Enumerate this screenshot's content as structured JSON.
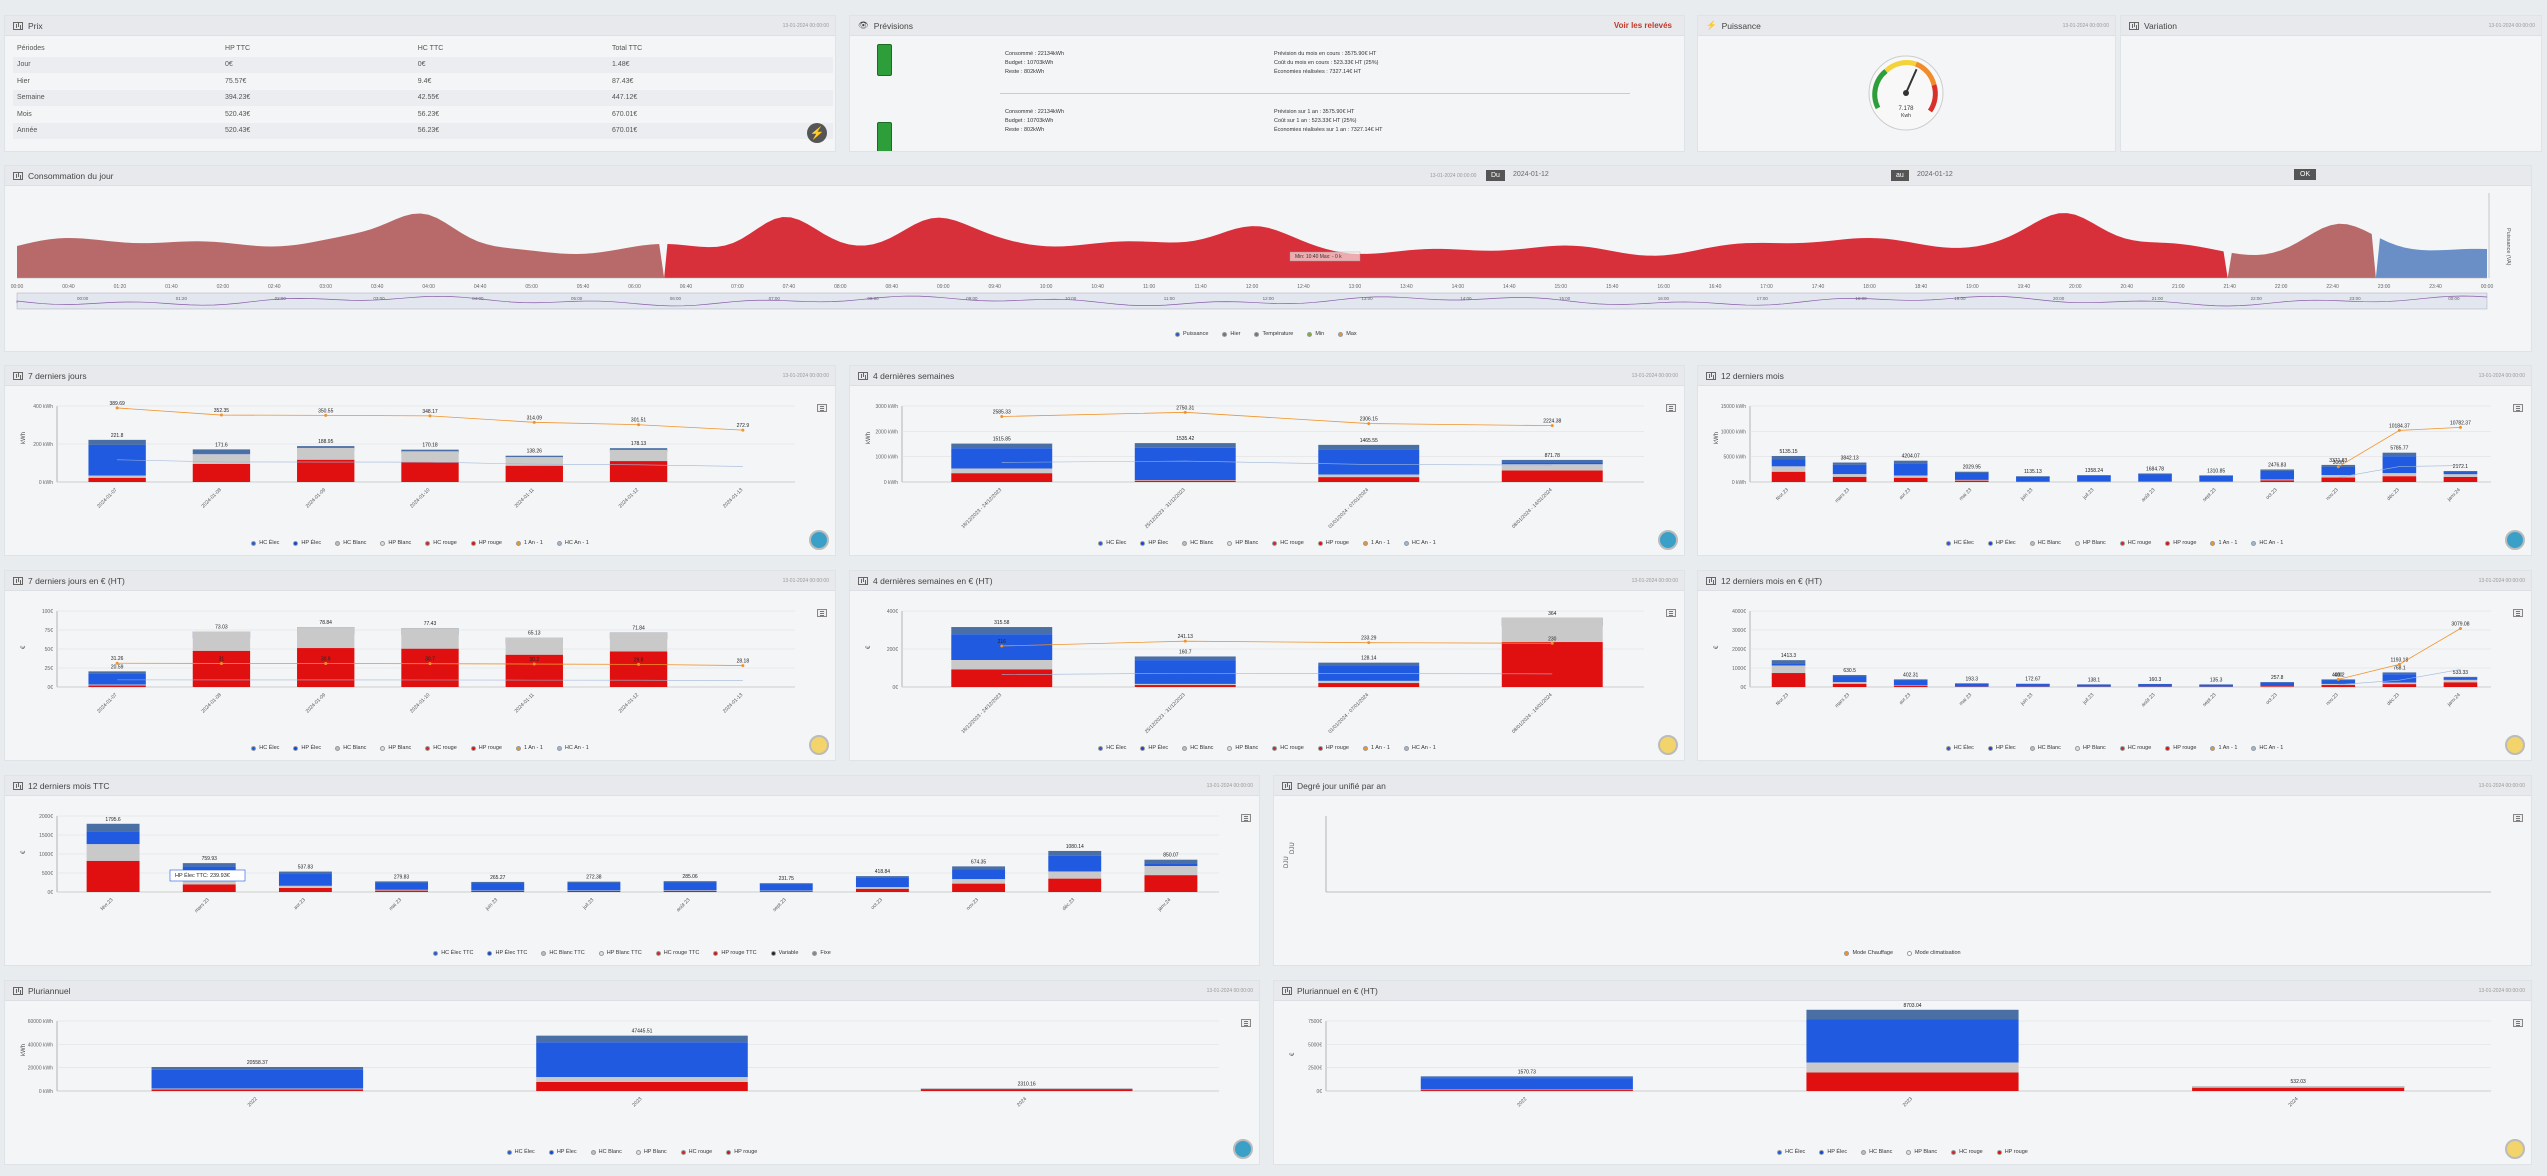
{
  "prix": {
    "title": "Prix",
    "date": "13-01-2024 00:00:00",
    "headers": [
      "Périodes",
      "HP TTC",
      "HC TTC",
      "Total TTC"
    ],
    "rows": [
      [
        "Jour",
        "0€",
        "0€",
        "1.48€"
      ],
      [
        "Hier",
        "75.57€",
        "9.4€",
        "87.43€"
      ],
      [
        "Semaine",
        "394.23€",
        "42.55€",
        "447.12€"
      ],
      [
        "Mois",
        "520.43€",
        "56.23€",
        "670.01€"
      ],
      [
        "Année",
        "520.43€",
        "56.23€",
        "670.01€"
      ]
    ]
  },
  "previsions": {
    "title": "Prévisions",
    "link": "Voir les relevés",
    "rows": [
      {
        "left": [
          "Consommé : 22134kWh",
          "Budget : 10703kWh",
          "Reste : 802kWh"
        ],
        "right": [
          "Prévision du mois en cours : 3575.90€ HT",
          "Coût du mois en cours : 523.33€ HT (25%)",
          "Économies réalisées : 7327.14€ HT"
        ]
      },
      {
        "left": [
          "Consommé : 22134kWh",
          "Budget : 10703kWh",
          "Reste : 802kWh"
        ],
        "right": [
          "Prévision sur 1 an : 3575.90€ HT",
          "Coût sur 1 an : 523.33€ HT (25%)",
          "Économies réalisées sur 1 an : 7327.14€ HT"
        ]
      }
    ]
  },
  "puissance": {
    "title": "Puissance",
    "date": "13-01-2024 00:00:00",
    "value": "7.178",
    "unit": "Kwh",
    "gauge_fraction": 0.6
  },
  "variation": {
    "title": "Variation",
    "date": "13-01-2024 00:00:00"
  },
  "conso_jour": {
    "title": "Consommation du jour",
    "date": "13-01-2024 00:00:00",
    "du_label": "Du",
    "du_value": "2024-01-12",
    "au_label": "au",
    "au_value": "2024-01-12",
    "ok": "OK",
    "tooltip": "Min: 10:40 Max: - 0 k",
    "yaxis": "Puissance (VA)",
    "ticks": [
      "00:00",
      "00:40",
      "01:20",
      "01:40",
      "02:00",
      "02:40",
      "03:00",
      "03:40",
      "04:00",
      "04:40",
      "05:00",
      "05:40",
      "06:00",
      "06:40",
      "07:00",
      "07:40",
      "08:00",
      "08:40",
      "09:00",
      "09:40",
      "10:00",
      "10:40",
      "11:00",
      "11:40",
      "12:00",
      "12:40",
      "13:00",
      "13:40",
      "14:00",
      "14:40",
      "15:00",
      "15:40",
      "16:00",
      "16:40",
      "17:00",
      "17:40",
      "18:00",
      "18:40",
      "19:00",
      "19:40",
      "20:00",
      "20:40",
      "21:00",
      "21:40",
      "22:00",
      "22:40",
      "23:00",
      "23:40",
      "00:00"
    ],
    "legend": [
      {
        "name": "Puissance",
        "color": "#2b59c3"
      },
      {
        "name": "Hier",
        "color": "#777"
      },
      {
        "name": "Température",
        "color": "#777"
      },
      {
        "name": "Min",
        "color": "#7fb036"
      },
      {
        "name": "Max",
        "color": "#f0932b"
      }
    ]
  },
  "legend_elec": [
    {
      "name": "HC Élec",
      "color": "#1f5ae0"
    },
    {
      "name": "HP Élec",
      "color": "#0c47d8"
    },
    {
      "name": "HC Blanc",
      "color": "#bdbdbd"
    },
    {
      "name": "HP Blanc",
      "color": "#e0e0e0"
    },
    {
      "name": "HC rouge",
      "color": "#c92a2a"
    },
    {
      "name": "HP rouge",
      "color": "#e01010"
    },
    {
      "name": "1 An - 1",
      "color": "#f0932b"
    },
    {
      "name": "HC An - 1",
      "color": "#9fb7d9"
    }
  ],
  "legend_ttc": [
    {
      "name": "HC Élec TTC",
      "color": "#1f5ae0"
    },
    {
      "name": "HP Élec TTC",
      "color": "#0c47d8"
    },
    {
      "name": "HC Blanc TTC",
      "color": "#bdbdbd"
    },
    {
      "name": "HP Blanc TTC",
      "color": "#e0e0e0"
    },
    {
      "name": "HC rouge TTC",
      "color": "#c92a2a"
    },
    {
      "name": "HP rouge TTC",
      "color": "#e01010"
    },
    {
      "name": "Variable",
      "color": "#222"
    },
    {
      "name": "Fixe",
      "color": "#888"
    }
  ],
  "legend_degre": [
    {
      "name": "Mode Chauffage",
      "color": "#f0932b"
    },
    {
      "name": "Mode climatisation",
      "color": "#ffffff"
    }
  ],
  "legend_pluri": [
    {
      "name": "HC Élec",
      "color": "#1f5ae0"
    },
    {
      "name": "HP Élec",
      "color": "#0c47d8"
    },
    {
      "name": "HC Blanc",
      "color": "#bdbdbd"
    },
    {
      "name": "HP Blanc",
      "color": "#e0e0e0"
    },
    {
      "name": "HC rouge",
      "color": "#c92a2a"
    },
    {
      "name": "HP rouge",
      "color": "#e01010"
    }
  ],
  "panels": {
    "p7j": {
      "title": "7 derniers jours",
      "date": "13-01-2024 00:00:00"
    },
    "p4s": {
      "title": "4 dernières semaines",
      "date": "13-01-2024 00:00:00"
    },
    "p12m": {
      "title": "12 derniers mois",
      "date": "13-01-2024 00:00:00"
    },
    "p7je": {
      "title": "7 derniers jours en € (HT)",
      "date": "13-01-2024 00:00:00"
    },
    "p4se": {
      "title": "4 dernières semaines en € (HT)",
      "date": "13-01-2024 00:00:00"
    },
    "p12me": {
      "title": "12 derniers mois en € (HT)",
      "date": "13-01-2024 00:00:00"
    },
    "p12ttc": {
      "title": "12 derniers mois TTC",
      "date": "13-01-2024 00:00:00",
      "tooltip": "HP Élec TTC: 239.93€"
    },
    "pdeg": {
      "title": "Degré jour unifié par an",
      "date": "13-01-2024 00:00:00",
      "yaxis": "DJU"
    },
    "ppl": {
      "title": "Pluriannuel",
      "date": "13-01-2024 00:00:00"
    },
    "pple": {
      "title": "Pluriannuel en € (HT)",
      "date": "13-01-2024 00:00:00"
    }
  },
  "chart_data": [
    {
      "id": "c7j",
      "type": "bar",
      "ylabel": "kWh",
      "yticks": [
        "0 kWh",
        "200 kWh",
        "400 kWh"
      ],
      "ymax": 400,
      "categories": [
        "2024-01-07",
        "2024-01-08",
        "2024-01-09",
        "2024-01-10",
        "2024-01-11",
        "2024-01-12",
        "2024-01-13"
      ],
      "totals": [
        221.8,
        171.6,
        188.95,
        170.18,
        138.26,
        178.13,
        0
      ],
      "blue": [
        0.85,
        0.15,
        0.05,
        0.05,
        0.05,
        0.05,
        0
      ],
      "line": [
        389.69,
        352.35,
        350.55,
        348.17,
        314.09,
        301.51,
        272.9
      ]
    },
    {
      "id": "c4s",
      "type": "bar",
      "ylabel": "kWh",
      "yticks": [
        "0 kWh",
        "1000 kWh",
        "2000 kWh",
        "3000 kWh"
      ],
      "ymax": 3000,
      "categories": [
        "18/12/2023 - 24/12/2023",
        "25/12/2023 - 31/12/2023",
        "01/01/2024 - 07/01/2024",
        "08/01/2024 - 14/01/2024"
      ],
      "totals": [
        1515.85,
        1535.42,
        1465.55,
        871.78
      ],
      "blue": [
        0.65,
        0.95,
        0.8,
        0.2
      ],
      "line": [
        2585.33,
        2750.31,
        2306.15,
        2224.38
      ]
    },
    {
      "id": "c12m",
      "type": "bar",
      "ylabel": "kWh",
      "yticks": [
        "0 kWh",
        "5000 kWh",
        "10000 kWh",
        "15000 kWh"
      ],
      "ymax": 15000,
      "categories": [
        "févr.23",
        "mars 23",
        "avr.23",
        "mai 23",
        "juin 23",
        "juil.23",
        "août 23",
        "sept.23",
        "oct.23",
        "nov.23",
        "déc.23",
        "janv.24"
      ],
      "totals": [
        5135.15,
        3842.13,
        4204.07,
        2029.95,
        1135.13,
        1358.24,
        1684.78,
        1310.85,
        2476.83,
        3371.83,
        5785.77,
        2172.1
      ],
      "blue": [
        0.4,
        0.6,
        0.7,
        0.8,
        0.9,
        0.9,
        0.9,
        0.9,
        0.8,
        0.6,
        0.7,
        0.3
      ],
      "line": [
        null,
        null,
        null,
        null,
        null,
        null,
        null,
        null,
        null,
        3000,
        10184.37,
        10782.37
      ]
    },
    {
      "id": "c7je",
      "type": "bar",
      "ylabel": "€",
      "yticks": [
        "0€",
        "25€",
        "50€",
        "75€",
        "100€"
      ],
      "ymax": 100,
      "categories": [
        "2024-01-07",
        "2024-01-08",
        "2024-01-09",
        "2024-01-10",
        "2024-01-11",
        "2024-01-12",
        "2024-01-13"
      ],
      "totals": [
        20.59,
        73.03,
        78.84,
        77.43,
        65.13,
        71.84,
        0
      ],
      "blue": [
        0.85,
        0,
        0,
        0,
        0,
        0,
        0
      ],
      "line": [
        31.26,
        31.0,
        30.9,
        30.7,
        30.2,
        29.8,
        28.18
      ]
    },
    {
      "id": "c4se",
      "type": "bar",
      "ylabel": "€",
      "yticks": [
        "0€",
        "200€",
        "400€"
      ],
      "ymax": 400,
      "categories": [
        "18/12/2023 - 24/12/2023",
        "25/12/2023 - 31/12/2023",
        "01/01/2024 - 07/01/2024",
        "08/01/2024 - 14/01/2024"
      ],
      "totals": [
        315.58,
        160.7,
        128.14,
        364.0
      ],
      "blue": [
        0.55,
        0.9,
        0.75,
        0
      ],
      "line": [
        216.0,
        241.13,
        233.29,
        230
      ]
    },
    {
      "id": "c12me",
      "type": "bar",
      "ylabel": "€",
      "yticks": [
        "0€",
        "1000€",
        "2000€",
        "3000€",
        "4000€"
      ],
      "ymax": 4000,
      "categories": [
        "févr.23",
        "mars 23",
        "avr.23",
        "mai 23",
        "juin 23",
        "juil.23",
        "août 23",
        "sept.23",
        "oct.23",
        "nov.23",
        "déc.23",
        "janv.24"
      ],
      "totals": [
        1413.3,
        630.5,
        402.31,
        193.3,
        172.67,
        138.1,
        160.3,
        135.3,
        257.8,
        400.2,
        768.1,
        533.33
      ],
      "blue": [
        0.2,
        0.6,
        0.8,
        0.9,
        0.9,
        0.9,
        0.9,
        0.9,
        0.8,
        0.6,
        0.7,
        0.3
      ],
      "line": [
        null,
        null,
        null,
        null,
        null,
        null,
        null,
        null,
        null,
        400,
        1193.18,
        3079.08
      ]
    },
    {
      "id": "c12ttc",
      "type": "bar",
      "ylabel": "€",
      "yticks": [
        "0€",
        "500€",
        "1000€",
        "1500€",
        "2000€"
      ],
      "ymax": 2000,
      "categories": [
        "févr.23",
        "mars 23",
        "avr.23",
        "mai 23",
        "juin 23",
        "juil.23",
        "août 23",
        "sept.23",
        "oct.23",
        "nov.23",
        "déc.23",
        "janv.24"
      ],
      "totals": [
        1795.6,
        759.93,
        537.83,
        279.83,
        265.27,
        272.38,
        285.06,
        231.75,
        418.84,
        674.35,
        1080.14,
        850.07
      ],
      "blue": [
        0.3,
        0.6,
        0.7,
        0.8,
        0.85,
        0.85,
        0.85,
        0.85,
        0.7,
        0.5,
        0.5,
        0.2
      ],
      "line": []
    },
    {
      "id": "cdeg",
      "type": "bar",
      "ylabel": "DJU",
      "categories": [],
      "totals": [],
      "blue": [],
      "line": []
    },
    {
      "id": "cpl",
      "type": "bar",
      "ylabel": "kWh",
      "yticks": [
        "0 kWh",
        "20000 kWh",
        "40000 kWh",
        "60000 kWh"
      ],
      "ymax": 60000,
      "categories": [
        "2022",
        "2023",
        "2024"
      ],
      "totals": [
        20558.37,
        47445.51,
        2310.16
      ],
      "blue": [
        0.9,
        0.75,
        0
      ],
      "line": []
    },
    {
      "id": "cple",
      "type": "bar",
      "ylabel": "€",
      "yticks": [
        "0€",
        "2500€",
        "5000€",
        "7500€"
      ],
      "ymax": 7500,
      "categories": [
        "2022",
        "2023",
        "2024"
      ],
      "totals": [
        1570.73,
        8703.04,
        532.03
      ],
      "blue": [
        0.9,
        0.65,
        0
      ],
      "line": []
    }
  ]
}
